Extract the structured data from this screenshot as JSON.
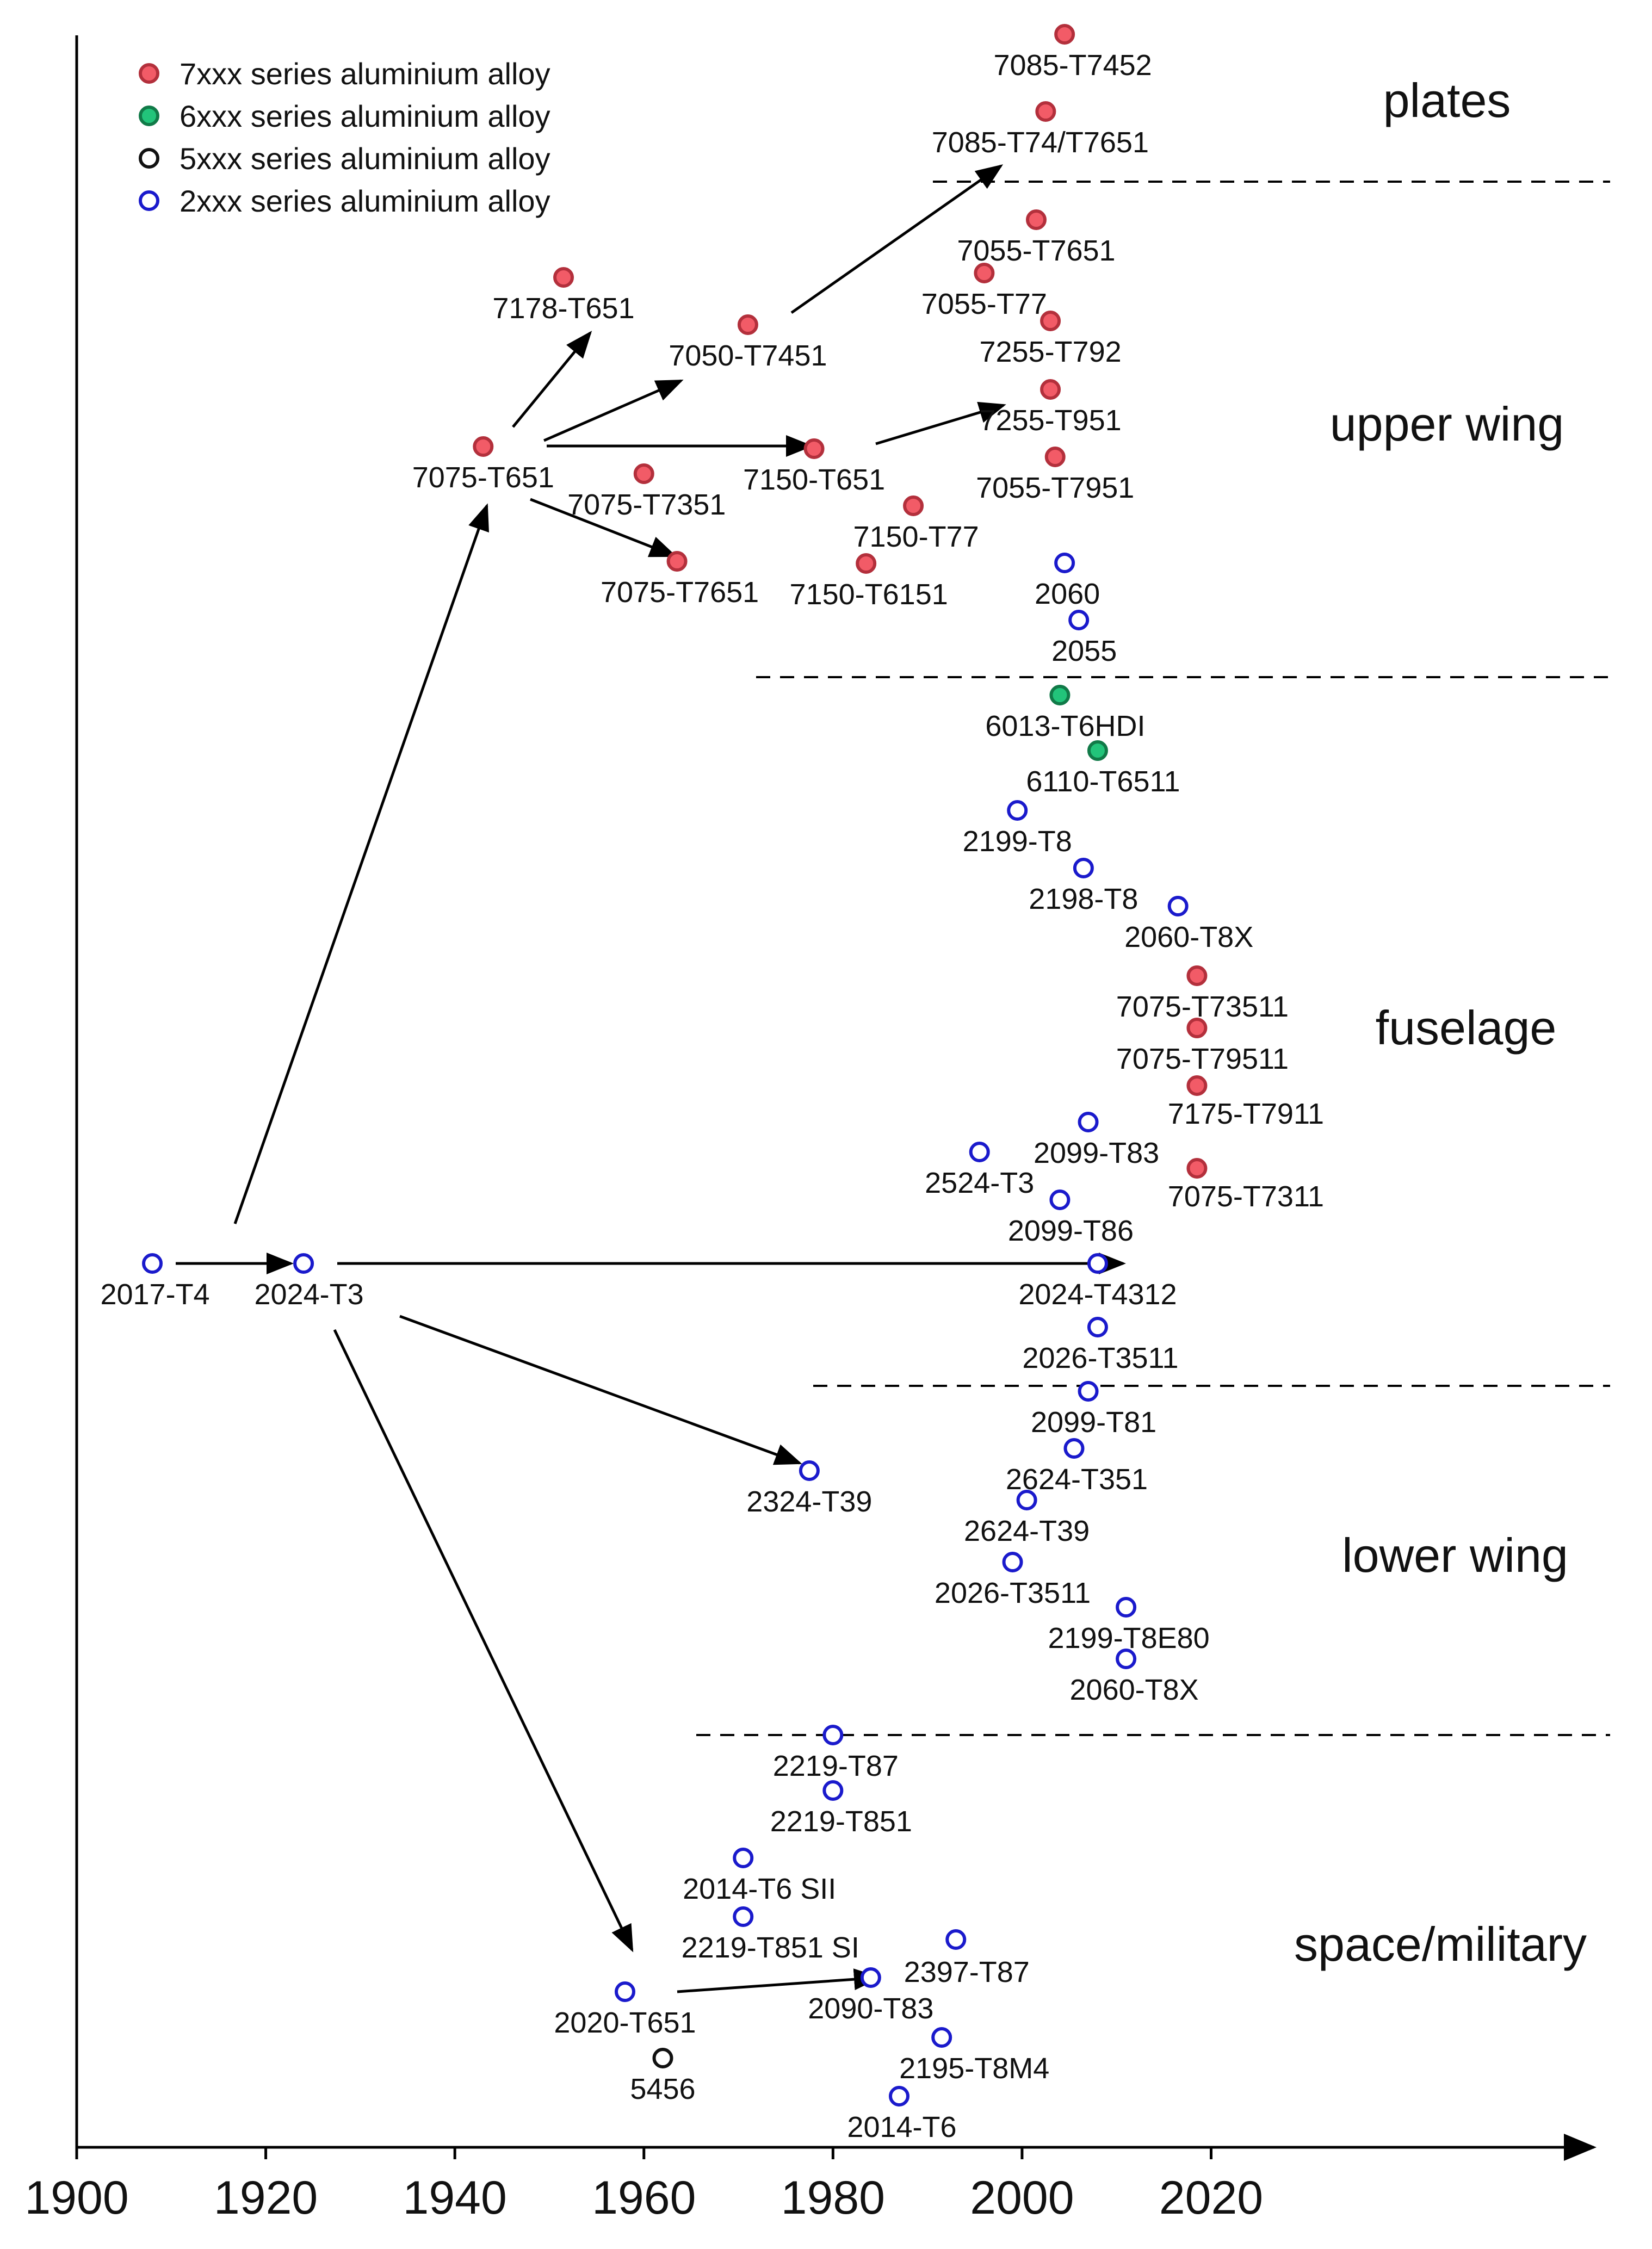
{
  "chart_data": {
    "type": "scatter",
    "title": "",
    "xlabel": "",
    "ylabel": "",
    "xlim": [
      1900,
      2053
    ],
    "x_ticks": [
      1900,
      1920,
      1940,
      1960,
      1980,
      2000,
      2020
    ],
    "colors": {
      "7xxx": "#f25b67",
      "6xxx": "#22c47a",
      "5xxx": "#ffffff",
      "2xxx": "#ffffff"
    },
    "edge_colors": {
      "7xxx": "#b3303c",
      "6xxx": "#117a48",
      "5xxx": "#111111",
      "2xxx": "#1a1acc"
    },
    "legend": [
      {
        "series": "7xxx",
        "label": "7xxx series aluminium alloy"
      },
      {
        "series": "6xxx",
        "label": "6xxx series aluminium alloy"
      },
      {
        "series": "5xxx",
        "label": "5xxx series aluminium alloy"
      },
      {
        "series": "2xxx",
        "label": "2xxx series aluminium alloy"
      }
    ],
    "regions": [
      {
        "name": "plates"
      },
      {
        "name": "upper wing"
      },
      {
        "name": "fuselage"
      },
      {
        "name": "lower wing"
      },
      {
        "name": "space/military"
      }
    ],
    "points": [
      {
        "label": "7085-T7452",
        "x": 2004.5,
        "series": "7xxx",
        "region": "plates"
      },
      {
        "label": "7085-T74/T7651",
        "x": 2002.5,
        "series": "7xxx",
        "region": "plates"
      },
      {
        "label": "7178-T651",
        "x": 1951.5,
        "series": "7xxx",
        "region": "upper wing"
      },
      {
        "label": "7050-T7451",
        "x": 1971,
        "series": "7xxx",
        "region": "upper wing"
      },
      {
        "label": "7075-T651",
        "x": 1943,
        "series": "7xxx",
        "region": "upper wing"
      },
      {
        "label": "7075-T7351",
        "x": 1960,
        "series": "7xxx",
        "region": "upper wing"
      },
      {
        "label": "7075-T7651",
        "x": 1963.5,
        "series": "7xxx",
        "region": "upper wing"
      },
      {
        "label": "7150-T651",
        "x": 1978,
        "series": "7xxx",
        "region": "upper wing"
      },
      {
        "label": "7150-T77",
        "x": 1988.5,
        "series": "7xxx",
        "region": "upper wing"
      },
      {
        "label": "7150-T6151",
        "x": 1983.5,
        "series": "7xxx",
        "region": "upper wing"
      },
      {
        "label": "7055-T7651",
        "x": 2001.5,
        "series": "7xxx",
        "region": "upper wing"
      },
      {
        "label": "7055-T77",
        "x": 1996,
        "series": "7xxx",
        "region": "upper wing"
      },
      {
        "label": "7255-T792",
        "x": 2003,
        "series": "7xxx",
        "region": "upper wing"
      },
      {
        "label": "7255-T951",
        "x": 2003,
        "series": "7xxx",
        "region": "upper wing"
      },
      {
        "label": "7055-T7951",
        "x": 2003.5,
        "series": "7xxx",
        "region": "upper wing"
      },
      {
        "label": "2060",
        "x": 2004.5,
        "series": "2xxx",
        "region": "upper wing"
      },
      {
        "label": "2055",
        "x": 2006,
        "series": "2xxx",
        "region": "upper wing"
      },
      {
        "label": "6013-T6HDI",
        "x": 2004,
        "series": "6xxx",
        "region": "fuselage"
      },
      {
        "label": "6110-T6511",
        "x": 2008,
        "series": "6xxx",
        "region": "fuselage"
      },
      {
        "label": "2199-T8",
        "x": 1999.5,
        "series": "2xxx",
        "region": "fuselage"
      },
      {
        "label": "2198-T8",
        "x": 2006.5,
        "series": "2xxx",
        "region": "fuselage"
      },
      {
        "label": "2060-T8X",
        "x": 2016.5,
        "series": "2xxx",
        "region": "fuselage"
      },
      {
        "label": "7075-T73511",
        "x": 2018.5,
        "series": "7xxx",
        "region": "fuselage"
      },
      {
        "label": "7075-T79511",
        "x": 2018.5,
        "series": "7xxx",
        "region": "fuselage"
      },
      {
        "label": "7175-T7911",
        "x": 2018.5,
        "series": "7xxx",
        "region": "fuselage"
      },
      {
        "label": "2099-T83",
        "x": 2007,
        "series": "2xxx",
        "region": "fuselage"
      },
      {
        "label": "2524-T3",
        "x": 1995.5,
        "series": "2xxx",
        "region": "fuselage"
      },
      {
        "label": "7075-T7311",
        "x": 2018.5,
        "series": "7xxx",
        "region": "fuselage"
      },
      {
        "label": "2099-T86",
        "x": 2004,
        "series": "2xxx",
        "region": "fuselage"
      },
      {
        "label": "2024-T4312",
        "x": 2008,
        "series": "2xxx",
        "region": "fuselage"
      },
      {
        "label": "2026-T3511",
        "x": 2008,
        "series": "2xxx",
        "region": "fuselage"
      },
      {
        "label": "2017-T4",
        "x": 1908,
        "series": "2xxx",
        "region": "fuselage"
      },
      {
        "label": "2024-T3",
        "x": 1924,
        "series": "2xxx",
        "region": "fuselage"
      },
      {
        "label": "2099-T81",
        "x": 2007,
        "series": "2xxx",
        "region": "lower wing"
      },
      {
        "label": "2624-T351",
        "x": 2005.5,
        "series": "2xxx",
        "region": "lower wing"
      },
      {
        "label": "2324-T39",
        "x": 1977.5,
        "series": "2xxx",
        "region": "lower wing"
      },
      {
        "label": "2624-T39",
        "x": 2000.5,
        "series": "2xxx",
        "region": "lower wing"
      },
      {
        "label": "2026-T3511",
        "x": 1999,
        "series": "2xxx",
        "region": "lower wing"
      },
      {
        "label": "2199-T8E80",
        "x": 2011,
        "series": "2xxx",
        "region": "lower wing"
      },
      {
        "label": "2060-T8X",
        "x": 2011,
        "series": "2xxx",
        "region": "lower wing"
      },
      {
        "label": "2219-T87",
        "x": 1980,
        "series": "2xxx",
        "region": "space/military"
      },
      {
        "label": "2219-T851",
        "x": 1980,
        "series": "2xxx",
        "region": "space/military"
      },
      {
        "label": "2014-T6 SII",
        "x": 1970.5,
        "series": "2xxx",
        "region": "space/military"
      },
      {
        "label": "2219-T851 SI",
        "x": 1970.5,
        "series": "2xxx",
        "region": "space/military"
      },
      {
        "label": "2397-T87",
        "x": 1993,
        "series": "2xxx",
        "region": "space/military"
      },
      {
        "label": "2020-T651",
        "x": 1958,
        "series": "2xxx",
        "region": "space/military"
      },
      {
        "label": "2090-T83",
        "x": 1984,
        "series": "2xxx",
        "region": "space/military"
      },
      {
        "label": "5456",
        "x": 1962,
        "series": "5xxx",
        "region": "space/military"
      },
      {
        "label": "2195-T8M4",
        "x": 1991.5,
        "series": "2xxx",
        "region": "space/military"
      },
      {
        "label": "2014-T6",
        "x": 1987,
        "series": "2xxx",
        "region": "space/military"
      }
    ],
    "arrows": [
      {
        "from": "2017-T4",
        "to": "2024-T3"
      },
      {
        "from": "2017-T4",
        "to": "7075-T651"
      },
      {
        "from": "2024-T3",
        "to": "2024-T4312"
      },
      {
        "from": "2024-T3",
        "to": "2324-T39"
      },
      {
        "from": "2024-T3",
        "to": "2020-T651"
      },
      {
        "from": "7075-T651",
        "to": "7178-T651"
      },
      {
        "from": "7075-T651",
        "to": "7050-T7451"
      },
      {
        "from": "7075-T651",
        "to": "7150-T651"
      },
      {
        "from": "7075-T651",
        "to": "7075-T7651"
      },
      {
        "from": "7050-T7451",
        "to": "7085-T74/T7651"
      },
      {
        "from": "7150-T651",
        "to": "7255-T951"
      },
      {
        "from": "2020-T651",
        "to": "2090-T83"
      }
    ]
  }
}
